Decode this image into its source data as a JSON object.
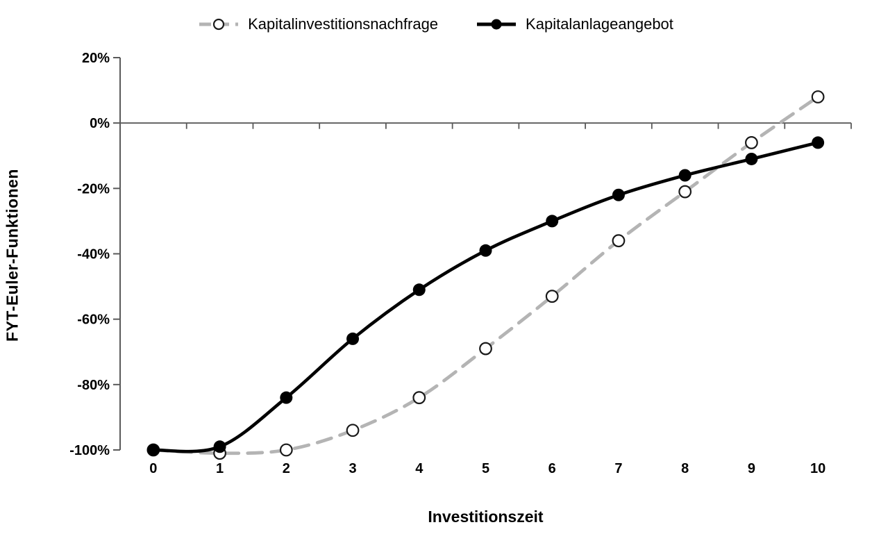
{
  "chart_data": {
    "type": "line",
    "xlabel": "Investitionszeit",
    "ylabel": "FYT-Euler-Funktionen",
    "x": [
      0,
      1,
      2,
      3,
      4,
      5,
      6,
      7,
      8,
      9,
      10
    ],
    "x_tick_labels": [
      "0",
      "1",
      "2",
      "3",
      "4",
      "5",
      "6",
      "7",
      "8",
      "9",
      "10"
    ],
    "y_ticks": [
      20,
      0,
      -20,
      -40,
      -60,
      -80,
      -100
    ],
    "y_tick_labels": [
      "20%",
      "0%",
      "-20%",
      "-40%",
      "-60%",
      "-80%",
      "-100%"
    ],
    "ylim": [
      -100,
      20
    ],
    "legend_position": "top-center",
    "grid": "zero-line-only",
    "colors": {
      "series_demand_gray": "#b4b4b4",
      "series_supply_black": "#000000",
      "axis_gray": "#595959",
      "marker_open_stroke": "#1a1a1a"
    },
    "series": [
      {
        "name": "Kapitalinvestitionsnachfrage",
        "style": "dashed",
        "marker": "open-circle",
        "color": "#b4b4b4",
        "values": [
          -100,
          -101,
          -100,
          -94,
          -84,
          -69,
          -53,
          -36,
          -21,
          -6,
          8
        ]
      },
      {
        "name": "Kapitalanlageangebot",
        "style": "solid",
        "marker": "filled-circle",
        "color": "#000000",
        "values": [
          -100,
          -99,
          -84,
          -66,
          -51,
          -39,
          -30,
          -22,
          -16,
          -11,
          -6
        ]
      }
    ]
  }
}
